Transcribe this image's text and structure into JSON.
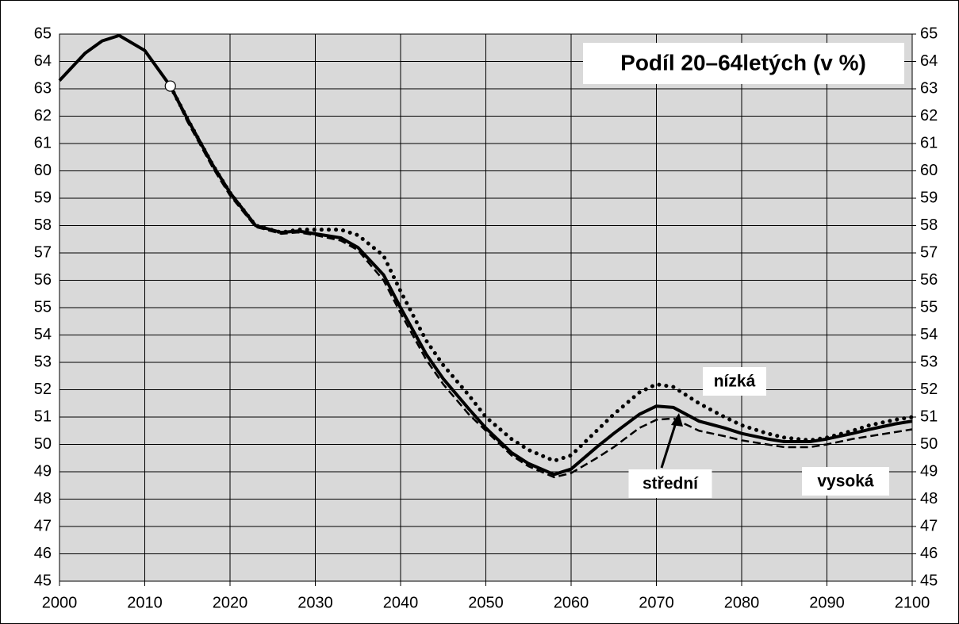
{
  "chart_data": {
    "type": "line",
    "title": "Podíl 20–64letých (v %)",
    "x": [
      2000,
      2003,
      2005,
      2007,
      2010,
      2013,
      2015,
      2018,
      2020,
      2023,
      2026,
      2028,
      2030,
      2033,
      2035,
      2038,
      2040,
      2043,
      2045,
      2048,
      2050,
      2053,
      2055,
      2058,
      2060,
      2063,
      2065,
      2068,
      2070,
      2072,
      2075,
      2078,
      2080,
      2083,
      2085,
      2088,
      2090,
      2093,
      2095,
      2098,
      2100
    ],
    "series": [
      {
        "name": "střední",
        "color": "#000000",
        "style": "solid",
        "values": [
          63.3,
          64.3,
          64.75,
          64.95,
          64.4,
          63.1,
          61.9,
          60.2,
          59.2,
          58.0,
          57.75,
          57.8,
          57.7,
          57.55,
          57.2,
          56.2,
          55.0,
          53.3,
          52.4,
          51.3,
          50.6,
          49.7,
          49.3,
          48.9,
          49.1,
          49.9,
          50.4,
          51.1,
          51.4,
          51.35,
          50.85,
          50.6,
          50.4,
          50.2,
          50.1,
          50.1,
          50.2,
          50.4,
          50.55,
          50.75,
          50.85
        ]
      },
      {
        "name": "nízká",
        "color": "#000000",
        "style": "dotted",
        "values": [
          null,
          null,
          null,
          null,
          null,
          63.1,
          61.9,
          60.2,
          59.2,
          58.0,
          57.75,
          57.85,
          57.85,
          57.85,
          57.65,
          56.9,
          55.6,
          53.8,
          52.9,
          51.8,
          51.0,
          50.2,
          49.8,
          49.4,
          49.6,
          50.5,
          51.1,
          51.9,
          52.2,
          52.1,
          51.5,
          51.0,
          50.7,
          50.4,
          50.25,
          50.15,
          50.25,
          50.5,
          50.7,
          50.9,
          51.0
        ]
      },
      {
        "name": "vysoká",
        "color": "#000000",
        "style": "dashed",
        "values": [
          null,
          null,
          null,
          null,
          null,
          63.1,
          61.8,
          60.1,
          59.1,
          57.95,
          57.7,
          57.75,
          57.65,
          57.45,
          57.1,
          56.0,
          54.8,
          53.1,
          52.2,
          51.1,
          50.5,
          49.6,
          49.2,
          48.8,
          48.95,
          49.5,
          49.9,
          50.6,
          50.9,
          50.95,
          50.5,
          50.3,
          50.15,
          50.0,
          49.9,
          49.9,
          50.0,
          50.2,
          50.3,
          50.45,
          50.55
        ]
      }
    ],
    "highlight": {
      "x": 2013,
      "y": 63.1
    },
    "xlim": [
      2000,
      2100
    ],
    "xticks": [
      2000,
      2010,
      2020,
      2030,
      2040,
      2050,
      2060,
      2070,
      2080,
      2090,
      2100
    ],
    "ylim": [
      45,
      65
    ],
    "yticks": [
      45,
      46,
      47,
      48,
      49,
      50,
      51,
      52,
      53,
      54,
      55,
      56,
      57,
      58,
      59,
      60,
      61,
      62,
      63,
      64,
      65
    ],
    "y2lim": [
      45,
      65
    ],
    "y2ticks": [
      45,
      46,
      47,
      48,
      49,
      50,
      51,
      52,
      53,
      54,
      55,
      56,
      57,
      58,
      59,
      60,
      61,
      62,
      63,
      64,
      65
    ],
    "grid": true,
    "background": "#d9d9d9"
  }
}
